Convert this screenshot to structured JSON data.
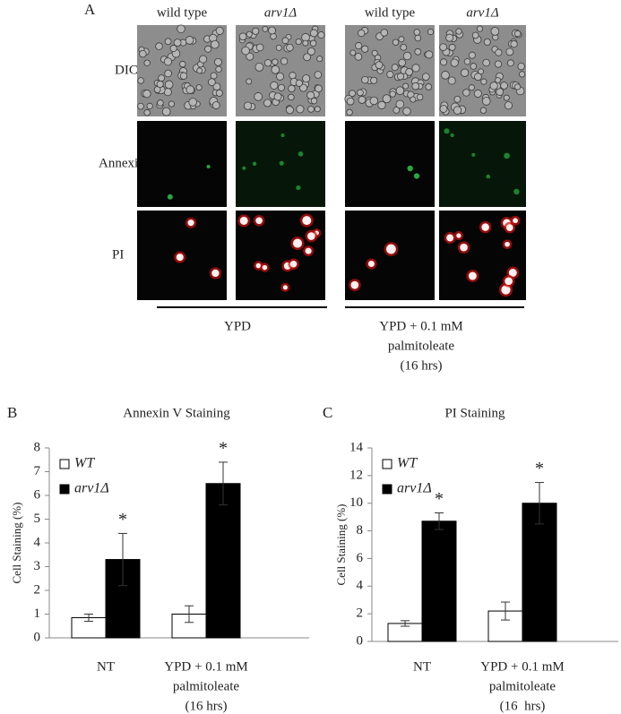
{
  "panel_a": {
    "label": "A",
    "columns": [
      "wild type",
      "arv1Δ",
      "wild type",
      "arv1Δ"
    ],
    "rows": [
      "DIC",
      "Annexin",
      "PI"
    ],
    "groups": [
      [
        "YPD"
      ],
      [
        "YPD + 0.1 mM",
        "palmitoleate",
        "(16 hrs)"
      ]
    ]
  },
  "chart_data": [
    {
      "type": "bar",
      "label": "B",
      "title": "Annexin V Staining",
      "y_label": "Cell Staining (%)",
      "categories": [
        [
          "NT"
        ],
        [
          "YPD + 0.1 mM",
          "palmitoleate",
          "(16 hrs)"
        ]
      ],
      "series": [
        {
          "name": "WT",
          "color": "#ffffff",
          "values": [
            0.85,
            1.0
          ],
          "errors": [
            0.15,
            0.35
          ]
        },
        {
          "name": "arv1Δ",
          "color": "#000000",
          "values": [
            3.3,
            6.5
          ],
          "errors": [
            1.1,
            0.9
          ],
          "significance_marks": [
            "*",
            "*"
          ]
        }
      ],
      "ylim": [
        0,
        8
      ],
      "yticks": [
        0,
        1,
        2,
        3,
        4,
        5,
        6,
        7,
        8
      ],
      "legend": "upper left",
      "grid": false
    },
    {
      "type": "bar",
      "label": "C",
      "title": "PI Staining",
      "y_label": "Cell Staining (%)",
      "categories": [
        [
          "NT"
        ],
        [
          "YPD + 0.1 mM",
          "palmitoleate",
          "(16  hrs)"
        ]
      ],
      "series": [
        {
          "name": "WT",
          "color": "#ffffff",
          "values": [
            1.3,
            2.2
          ],
          "errors": [
            0.2,
            0.65
          ]
        },
        {
          "name": "arv1Δ",
          "color": "#000000",
          "values": [
            8.7,
            10.0
          ],
          "errors": [
            0.6,
            1.5
          ],
          "significance_marks": [
            "*",
            "*"
          ]
        }
      ],
      "ylim": [
        0,
        14
      ],
      "yticks": [
        0,
        2,
        4,
        6,
        8,
        10,
        12,
        14
      ],
      "legend": "upper left",
      "grid": false
    }
  ]
}
